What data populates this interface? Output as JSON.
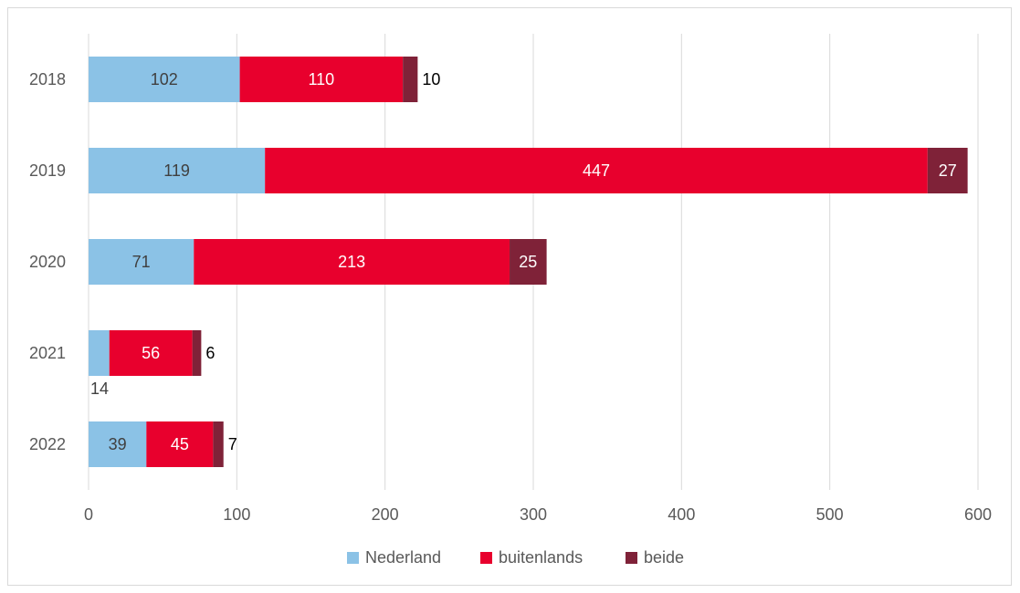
{
  "chart_data": {
    "type": "bar",
    "orientation": "horizontal",
    "stacked": true,
    "categories": [
      "2018",
      "2019",
      "2020",
      "2021",
      "2022"
    ],
    "series": [
      {
        "name": "Nederland",
        "color": "#8BC2E6",
        "values": [
          102,
          119,
          71,
          14,
          39
        ]
      },
      {
        "name": "buitenlands",
        "color": "#E8002D",
        "values": [
          110,
          447,
          213,
          56,
          45
        ]
      },
      {
        "name": "beide",
        "color": "#7F2238",
        "values": [
          10,
          27,
          25,
          6,
          7
        ]
      }
    ],
    "xlim": [
      0,
      600
    ],
    "xticks": [
      0,
      100,
      200,
      300,
      400,
      500,
      600
    ],
    "grid": "vertical",
    "legend": "bottom",
    "title": "",
    "xlabel": "",
    "ylabel": ""
  }
}
